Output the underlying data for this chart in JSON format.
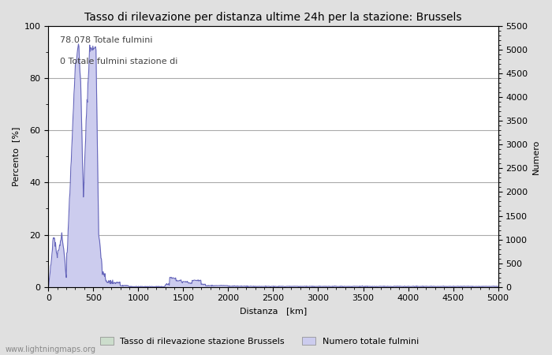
{
  "title": "Tasso di rilevazione per distanza ultime 24h per la stazione: Brussels",
  "xlabel": "Distanza   [km]",
  "ylabel_left": "Percento  [%]",
  "ylabel_right": "Numero",
  "annotation_line1": "78.078 Totale fulmini",
  "annotation_line2": "0 Totale fulmini stazione di",
  "legend_label1": "Tasso di rilevazione stazione Brussels",
  "legend_label2": "Numero totale fulmini",
  "watermark": "www.lightningmaps.org",
  "xlim": [
    0,
    5000
  ],
  "ylim_left": [
    0,
    100
  ],
  "ylim_right": [
    0,
    5500
  ],
  "yticks_left": [
    0,
    20,
    40,
    60,
    80,
    100
  ],
  "yticks_right": [
    0,
    500,
    1000,
    1500,
    2000,
    2500,
    3000,
    3500,
    4000,
    4500,
    5000,
    5500
  ],
  "xticks": [
    0,
    500,
    1000,
    1500,
    2000,
    2500,
    3000,
    3500,
    4000,
    4500,
    5000
  ],
  "bg_color": "#e0e0e0",
  "plot_bg_color": "#ffffff",
  "line_color": "#6666bb",
  "fill_color_detection": "#ccddcc",
  "fill_color_total": "#ccccee",
  "grid_color": "#aaaaaa",
  "title_fontsize": 10,
  "label_fontsize": 8,
  "tick_fontsize": 8,
  "annotation_fontsize": 8
}
